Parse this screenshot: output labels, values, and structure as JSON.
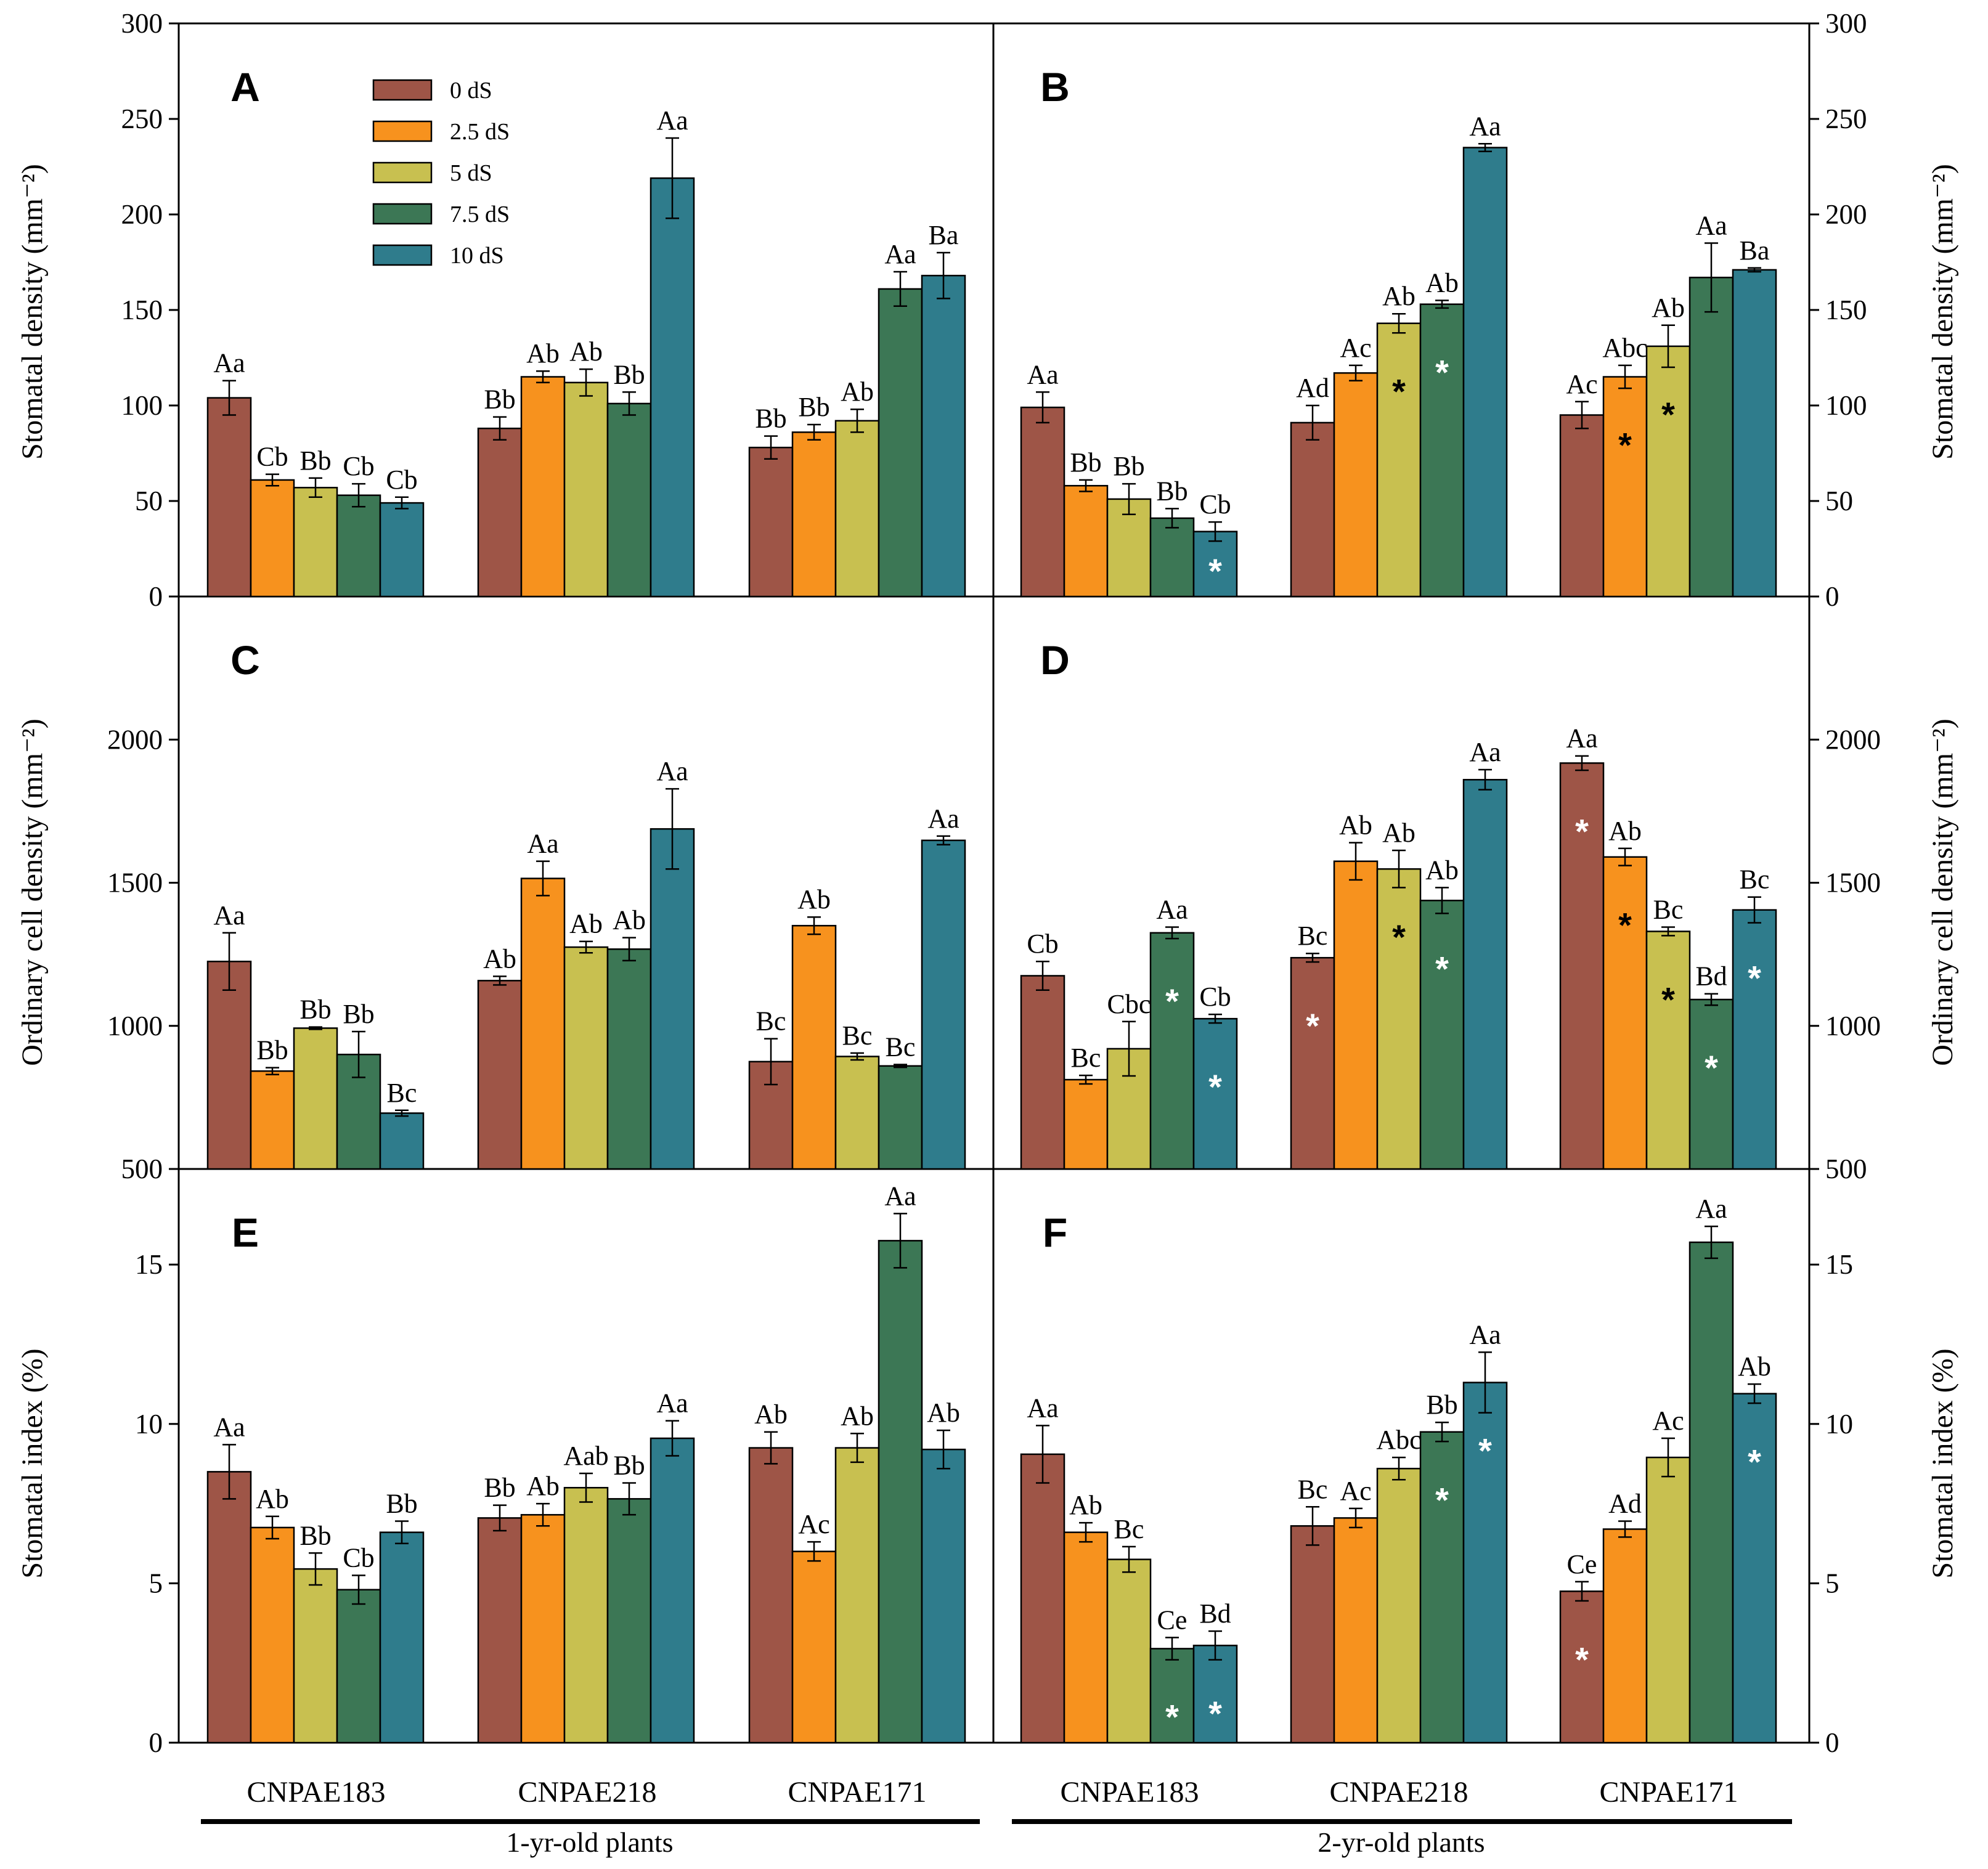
{
  "legend": {
    "items": [
      "0 dS",
      "2.5 dS",
      "5 dS",
      "7.5 dS",
      "10 dS"
    ],
    "colors": [
      "#9E5547",
      "#F7921E",
      "#C8C050",
      "#3C7755",
      "#2F7C8C"
    ]
  },
  "x_groups": [
    "CNPAE183",
    "CNPAE218",
    "CNPAE171"
  ],
  "age_labels": [
    "1-yr-old plants",
    "2-yr-old plants"
  ],
  "y_labels": {
    "density": "Stomatal density (mm⁻²)",
    "ordinary": "Ordinary cell density (mm⁻²)",
    "index": "Stomatal index (%)"
  },
  "chart_data": [
    {
      "type": "bar",
      "panel": "A",
      "ylabel": "Stomatal density (mm⁻²)",
      "ylim": [
        0,
        300
      ],
      "yticks": [
        0,
        50,
        100,
        150,
        200,
        250,
        300
      ],
      "categories": [
        "CNPAE183",
        "CNPAE218",
        "CNPAE171"
      ],
      "series": [
        {
          "name": "0 dS",
          "values": [
            104,
            88,
            78
          ],
          "errors": [
            9,
            6,
            6
          ],
          "labels": [
            "Aa",
            "Bb",
            "Bb"
          ],
          "stars": [
            null,
            null,
            null
          ]
        },
        {
          "name": "2.5 dS",
          "values": [
            61,
            115,
            86
          ],
          "errors": [
            3,
            3,
            4
          ],
          "labels": [
            "Cb",
            "Ab",
            "Bb"
          ],
          "stars": [
            null,
            null,
            null
          ]
        },
        {
          "name": "5 dS",
          "values": [
            57,
            112,
            92
          ],
          "errors": [
            5,
            7,
            6
          ],
          "labels": [
            "Bb",
            "Ab",
            "Ab"
          ],
          "stars": [
            null,
            null,
            null
          ]
        },
        {
          "name": "7.5 dS",
          "values": [
            53,
            101,
            161
          ],
          "errors": [
            6,
            6,
            9
          ],
          "labels": [
            "Cb",
            "Bb",
            "Aa"
          ],
          "stars": [
            null,
            null,
            null
          ]
        },
        {
          "name": "10 dS",
          "values": [
            49,
            219,
            168
          ],
          "errors": [
            3,
            21,
            12
          ],
          "labels": [
            "Cb",
            "Aa",
            "Ba"
          ],
          "stars": [
            null,
            null,
            null
          ]
        }
      ]
    },
    {
      "type": "bar",
      "panel": "B",
      "ylabel": "Stomatal density (mm⁻²)",
      "ylim": [
        0,
        300
      ],
      "yticks": [
        0,
        50,
        100,
        150,
        200,
        250,
        300
      ],
      "categories": [
        "CNPAE183",
        "CNPAE218",
        "CNPAE171"
      ],
      "series": [
        {
          "name": "0 dS",
          "values": [
            99,
            91,
            95
          ],
          "errors": [
            8,
            9,
            7
          ],
          "labels": [
            "Aa",
            "Ad",
            "Ac"
          ],
          "stars": [
            null,
            null,
            null
          ]
        },
        {
          "name": "2.5 dS",
          "values": [
            58,
            117,
            115
          ],
          "errors": [
            3,
            4,
            6
          ],
          "labels": [
            "Bb",
            "Ac",
            "Abc"
          ],
          "stars": [
            null,
            null,
            "black"
          ]
        },
        {
          "name": "5 dS",
          "values": [
            51,
            143,
            131
          ],
          "errors": [
            8,
            5,
            11
          ],
          "labels": [
            "Bb",
            "Ab",
            "Ab"
          ],
          "stars": [
            null,
            "black",
            "black"
          ]
        },
        {
          "name": "7.5 dS",
          "values": [
            41,
            153,
            167
          ],
          "errors": [
            5,
            2,
            18
          ],
          "labels": [
            "Bb",
            "Ab",
            "Aa"
          ],
          "stars": [
            null,
            "white",
            null
          ]
        },
        {
          "name": "10 dS",
          "values": [
            34,
            235,
            171
          ],
          "errors": [
            5,
            2,
            1
          ],
          "labels": [
            "Cb",
            "Aa",
            "Ba"
          ],
          "stars": [
            "white",
            null,
            null
          ]
        }
      ]
    },
    {
      "type": "bar",
      "panel": "C",
      "ylabel": "Ordinary cell density (mm⁻²)",
      "ylim": [
        500,
        2500
      ],
      "yticks": [
        500,
        1000,
        1500,
        2000
      ],
      "categories": [
        "CNPAE183",
        "CNPAE218",
        "CNPAE171"
      ],
      "series": [
        {
          "name": "0 dS",
          "values": [
            1225,
            1158,
            875
          ],
          "errors": [
            100,
            15,
            80
          ],
          "labels": [
            "Aa",
            "Ab",
            "Bc"
          ],
          "stars": [
            null,
            null,
            null
          ]
        },
        {
          "name": "2.5 dS",
          "values": [
            842,
            1515,
            1350
          ],
          "errors": [
            12,
            60,
            30
          ],
          "labels": [
            "Bb",
            "Aa",
            "Ab"
          ],
          "stars": [
            null,
            null,
            null
          ]
        },
        {
          "name": "5 dS",
          "values": [
            992,
            1275,
            893
          ],
          "errors": [
            4,
            20,
            12
          ],
          "labels": [
            "Bb",
            "Ab",
            "Bc"
          ],
          "stars": [
            null,
            null,
            null
          ]
        },
        {
          "name": "7.5 dS",
          "values": [
            900,
            1268,
            860
          ],
          "errors": [
            80,
            40,
            5
          ],
          "labels": [
            "Bb",
            "Ab",
            "Bc"
          ],
          "stars": [
            null,
            null,
            null
          ]
        },
        {
          "name": "10 dS",
          "values": [
            695,
            1688,
            1648
          ],
          "errors": [
            10,
            140,
            15
          ],
          "labels": [
            "Bc",
            "Aa",
            "Aa"
          ],
          "stars": [
            null,
            null,
            null
          ]
        }
      ]
    },
    {
      "type": "bar",
      "panel": "D",
      "ylabel": "Ordinary cell density (mm⁻²)",
      "ylim": [
        500,
        2500
      ],
      "yticks": [
        500,
        1000,
        1500,
        2000
      ],
      "categories": [
        "CNPAE183",
        "CNPAE218",
        "CNPAE171"
      ],
      "series": [
        {
          "name": "0 dS",
          "values": [
            1175,
            1238,
            1918
          ],
          "errors": [
            50,
            15,
            25
          ],
          "labels": [
            "Cb",
            "Bc",
            "Aa"
          ],
          "stars": [
            null,
            "white",
            "white"
          ]
        },
        {
          "name": "2.5 dS",
          "values": [
            812,
            1575,
            1590
          ],
          "errors": [
            15,
            65,
            30
          ],
          "labels": [
            "Bc",
            "Ab",
            "Ab"
          ],
          "stars": [
            null,
            null,
            "black"
          ]
        },
        {
          "name": "5 dS",
          "values": [
            920,
            1548,
            1330
          ],
          "errors": [
            95,
            65,
            15
          ],
          "labels": [
            "Cbc",
            "Ab",
            "Bc"
          ],
          "stars": [
            null,
            "black",
            "black"
          ]
        },
        {
          "name": "7.5 dS",
          "values": [
            1325,
            1438,
            1092
          ],
          "errors": [
            20,
            45,
            20
          ],
          "labels": [
            "Aa",
            "Ab",
            "Bd"
          ],
          "stars": [
            "white",
            "white",
            "white"
          ]
        },
        {
          "name": "10 dS",
          "values": [
            1025,
            1860,
            1405
          ],
          "errors": [
            15,
            35,
            45
          ],
          "labels": [
            "Cb",
            "Aa",
            "Bc"
          ],
          "stars": [
            "white",
            null,
            "white"
          ]
        }
      ]
    },
    {
      "type": "bar",
      "panel": "E",
      "ylabel": "Stomatal index (%)",
      "ylim": [
        0,
        18
      ],
      "yticks": [
        0,
        5,
        10,
        15
      ],
      "categories": [
        "CNPAE183",
        "CNPAE218",
        "CNPAE171"
      ],
      "series": [
        {
          "name": "0 dS",
          "values": [
            8.5,
            7.05,
            9.25
          ],
          "errors": [
            0.85,
            0.4,
            0.5
          ],
          "labels": [
            "Aa",
            "Bb",
            "Ab"
          ],
          "stars": [
            null,
            null,
            null
          ]
        },
        {
          "name": "2.5 dS",
          "values": [
            6.75,
            7.15,
            6.0
          ],
          "errors": [
            0.35,
            0.35,
            0.3
          ],
          "labels": [
            "Ab",
            "Ab",
            "Ac"
          ],
          "stars": [
            null,
            null,
            null
          ]
        },
        {
          "name": "5 dS",
          "values": [
            5.45,
            8.0,
            9.25
          ],
          "errors": [
            0.5,
            0.45,
            0.45
          ],
          "labels": [
            "Bb",
            "Aab",
            "Ab"
          ],
          "stars": [
            null,
            null,
            null
          ]
        },
        {
          "name": "7.5 dS",
          "values": [
            4.8,
            7.65,
            15.75
          ],
          "errors": [
            0.45,
            0.5,
            0.85
          ],
          "labels": [
            "Cb",
            "Bb",
            "Aa"
          ],
          "stars": [
            null,
            null,
            null
          ]
        },
        {
          "name": "10 dS",
          "values": [
            6.6,
            9.55,
            9.2
          ],
          "errors": [
            0.35,
            0.55,
            0.6
          ],
          "labels": [
            "Bb",
            "Aa",
            "Ab"
          ],
          "stars": [
            null,
            null,
            null
          ]
        }
      ]
    },
    {
      "type": "bar",
      "panel": "F",
      "ylabel": "Stomatal index (%)",
      "ylim": [
        0,
        18
      ],
      "yticks": [
        0,
        5,
        10,
        15
      ],
      "categories": [
        "CNPAE183",
        "CNPAE218",
        "CNPAE171"
      ],
      "series": [
        {
          "name": "0 dS",
          "values": [
            9.05,
            6.8,
            4.75
          ],
          "errors": [
            0.9,
            0.6,
            0.3
          ],
          "labels": [
            "Aa",
            "Bc",
            "Ce"
          ],
          "stars": [
            null,
            null,
            "white"
          ]
        },
        {
          "name": "2.5 dS",
          "values": [
            6.6,
            7.05,
            6.7
          ],
          "errors": [
            0.3,
            0.3,
            0.25
          ],
          "labels": [
            "Ab",
            "Ac",
            "Ad"
          ],
          "stars": [
            null,
            null,
            null
          ]
        },
        {
          "name": "5 dS",
          "values": [
            5.75,
            8.6,
            8.95
          ],
          "errors": [
            0.4,
            0.35,
            0.6
          ],
          "labels": [
            "Bc",
            "Abc",
            "Ac"
          ],
          "stars": [
            null,
            null,
            null
          ]
        },
        {
          "name": "7.5 dS",
          "values": [
            2.95,
            9.75,
            15.7
          ],
          "errors": [
            0.35,
            0.3,
            0.5
          ],
          "labels": [
            "Ce",
            "Bb",
            "Aa"
          ],
          "stars": [
            "white",
            "white",
            null
          ]
        },
        {
          "name": "10 dS",
          "values": [
            3.05,
            11.3,
            10.95
          ],
          "errors": [
            0.45,
            0.95,
            0.3
          ],
          "labels": [
            "Bd",
            "Aa",
            "Ab"
          ],
          "stars": [
            "white",
            "white",
            "white"
          ]
        }
      ]
    }
  ]
}
